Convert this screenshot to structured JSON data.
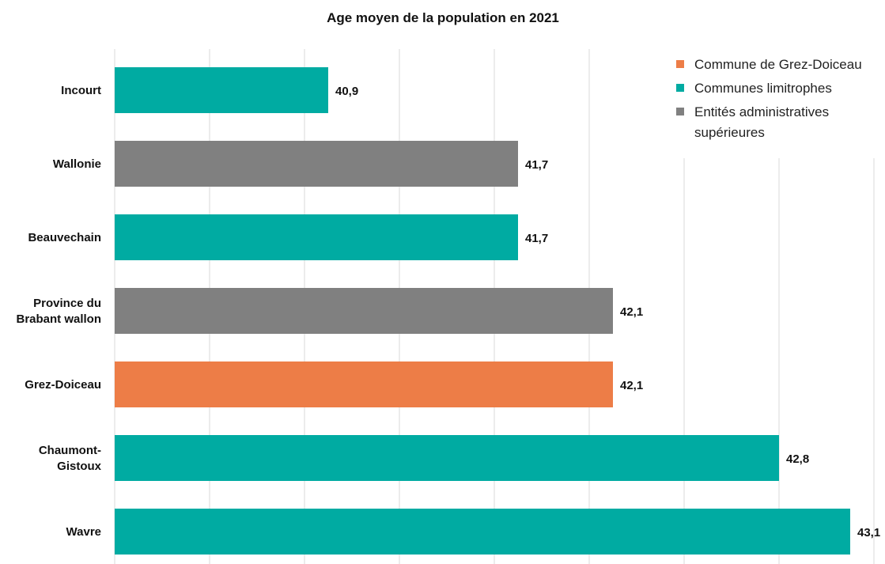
{
  "chart_data": {
    "type": "bar",
    "orientation": "horizontal",
    "title": "Age moyen de la population en 2021",
    "xlabel": "",
    "ylabel": "",
    "xlim": [
      40.0,
      43.8
    ],
    "grid": true,
    "legend_position": "top-right",
    "categories": [
      [
        "Incourt"
      ],
      [
        "Wallonie"
      ],
      [
        "Beauvechain"
      ],
      [
        "Province du",
        "Brabant wallon"
      ],
      [
        "Grez-Doiceau"
      ],
      [
        "Chaumont-",
        "Gistoux"
      ],
      [
        "Wavre"
      ]
    ],
    "values": [
      40.9,
      41.7,
      41.7,
      42.1,
      42.1,
      42.8,
      43.1
    ],
    "value_labels": [
      "40,9",
      "41,7",
      "41,7",
      "42,1",
      "42,1",
      "42,8",
      "43,1"
    ],
    "bar_groups": [
      1,
      2,
      1,
      2,
      0,
      1,
      1
    ],
    "legend": [
      {
        "lines": [
          "Commune de Grez-Doiceau"
        ],
        "color": "#ed7d47"
      },
      {
        "lines": [
          "Communes limitrophes"
        ],
        "color": "#00aba2"
      },
      {
        "lines": [
          "Entités administratives",
          "supérieures"
        ],
        "color": "#808080"
      }
    ]
  }
}
